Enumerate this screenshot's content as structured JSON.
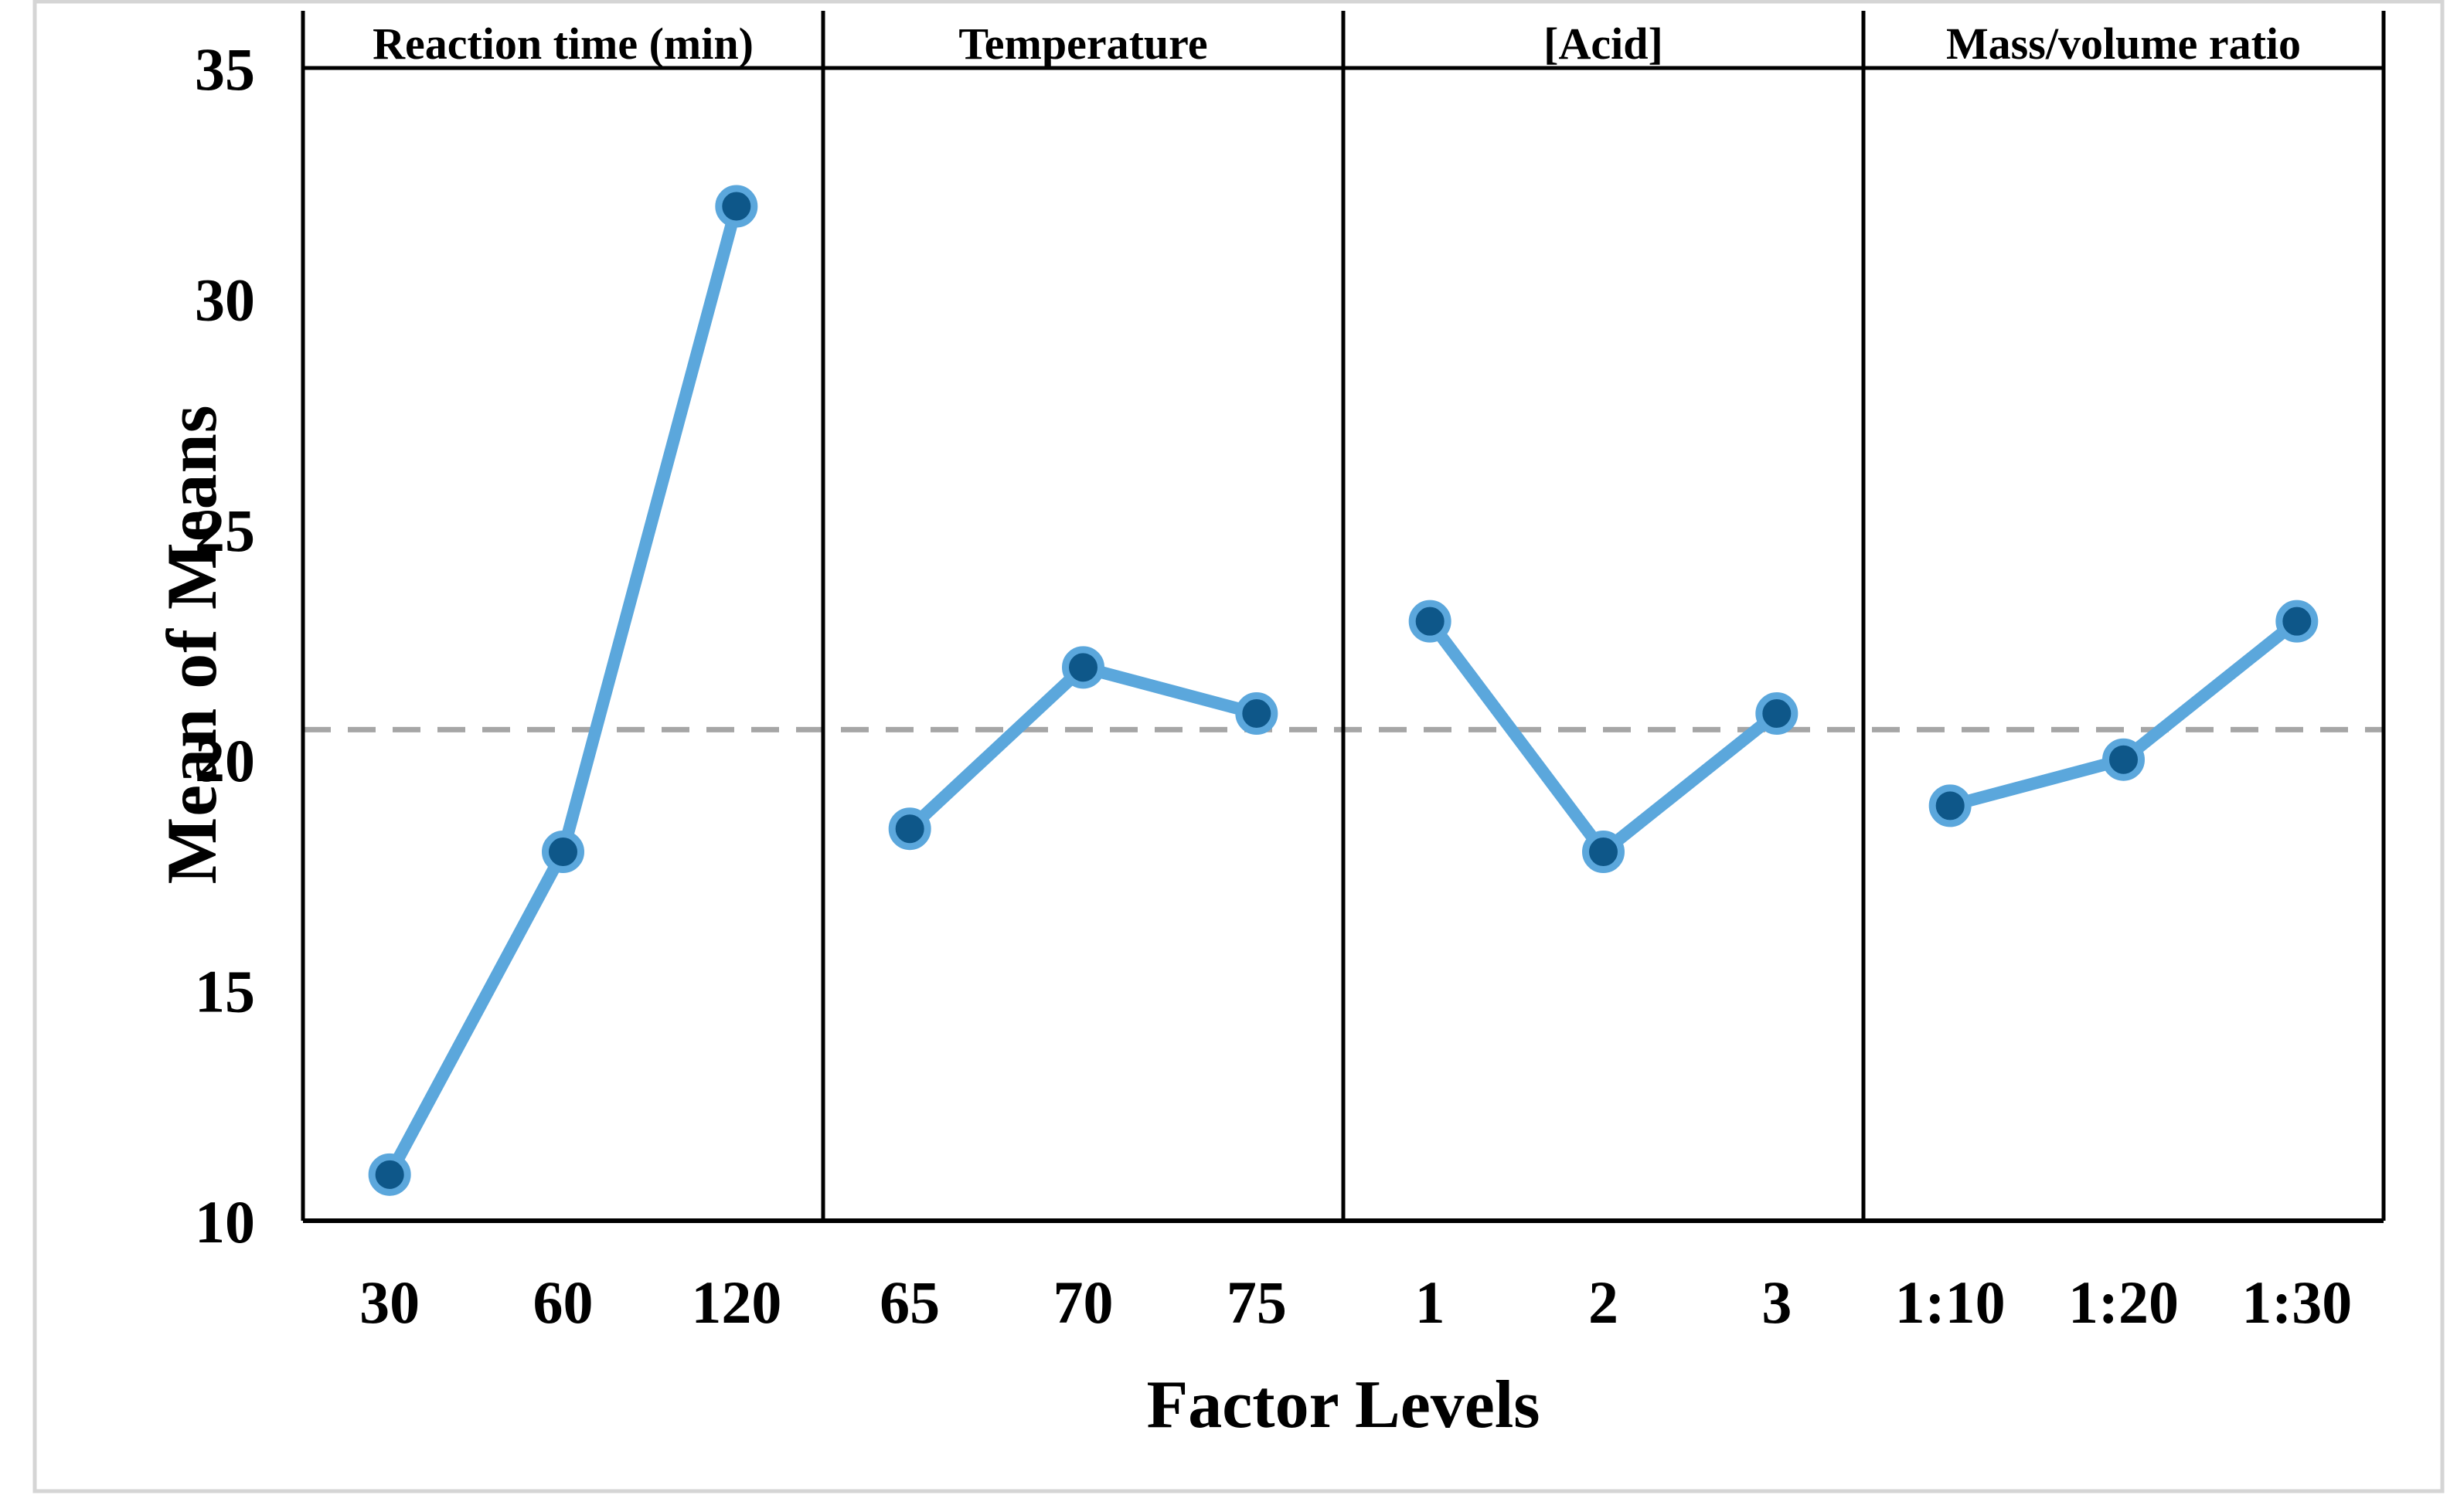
{
  "figure": {
    "background": "#ffffff",
    "border_color": "#d5d5d5"
  },
  "chart_data": {
    "type": "line",
    "subtype": "main-effects-plot",
    "title": "",
    "ylabel": "Mean of Means",
    "xlabel": "Factor Levels",
    "ylim": [
      10,
      35
    ],
    "yticks": [
      35,
      30,
      25,
      20,
      15,
      10
    ],
    "grid": false,
    "legend": "none",
    "reference_line": {
      "value": 20.65,
      "style": "dashed",
      "color": "#a6a6a6"
    },
    "panels": [
      {
        "header": "Reaction time (min)",
        "categories": [
          "30",
          "60",
          "120"
        ],
        "values": [
          11,
          18,
          32
        ]
      },
      {
        "header": "Temperature",
        "categories": [
          "65",
          "70",
          "75"
        ],
        "values": [
          18.5,
          22,
          21
        ]
      },
      {
        "header": "[Acid]",
        "categories": [
          "1",
          "2",
          "3"
        ],
        "values": [
          23,
          18,
          21
        ]
      },
      {
        "header": "Mass/volume ratio",
        "categories": [
          "1:10",
          "1:20",
          "1:30"
        ],
        "values": [
          19,
          20,
          23
        ]
      }
    ],
    "series_style": {
      "line_color": "#5BA7DC",
      "marker_fill": "#0E5789",
      "marker_ring": "#5BA7DC"
    },
    "axis_color": "#000000",
    "tick_label_color": "#000000"
  }
}
